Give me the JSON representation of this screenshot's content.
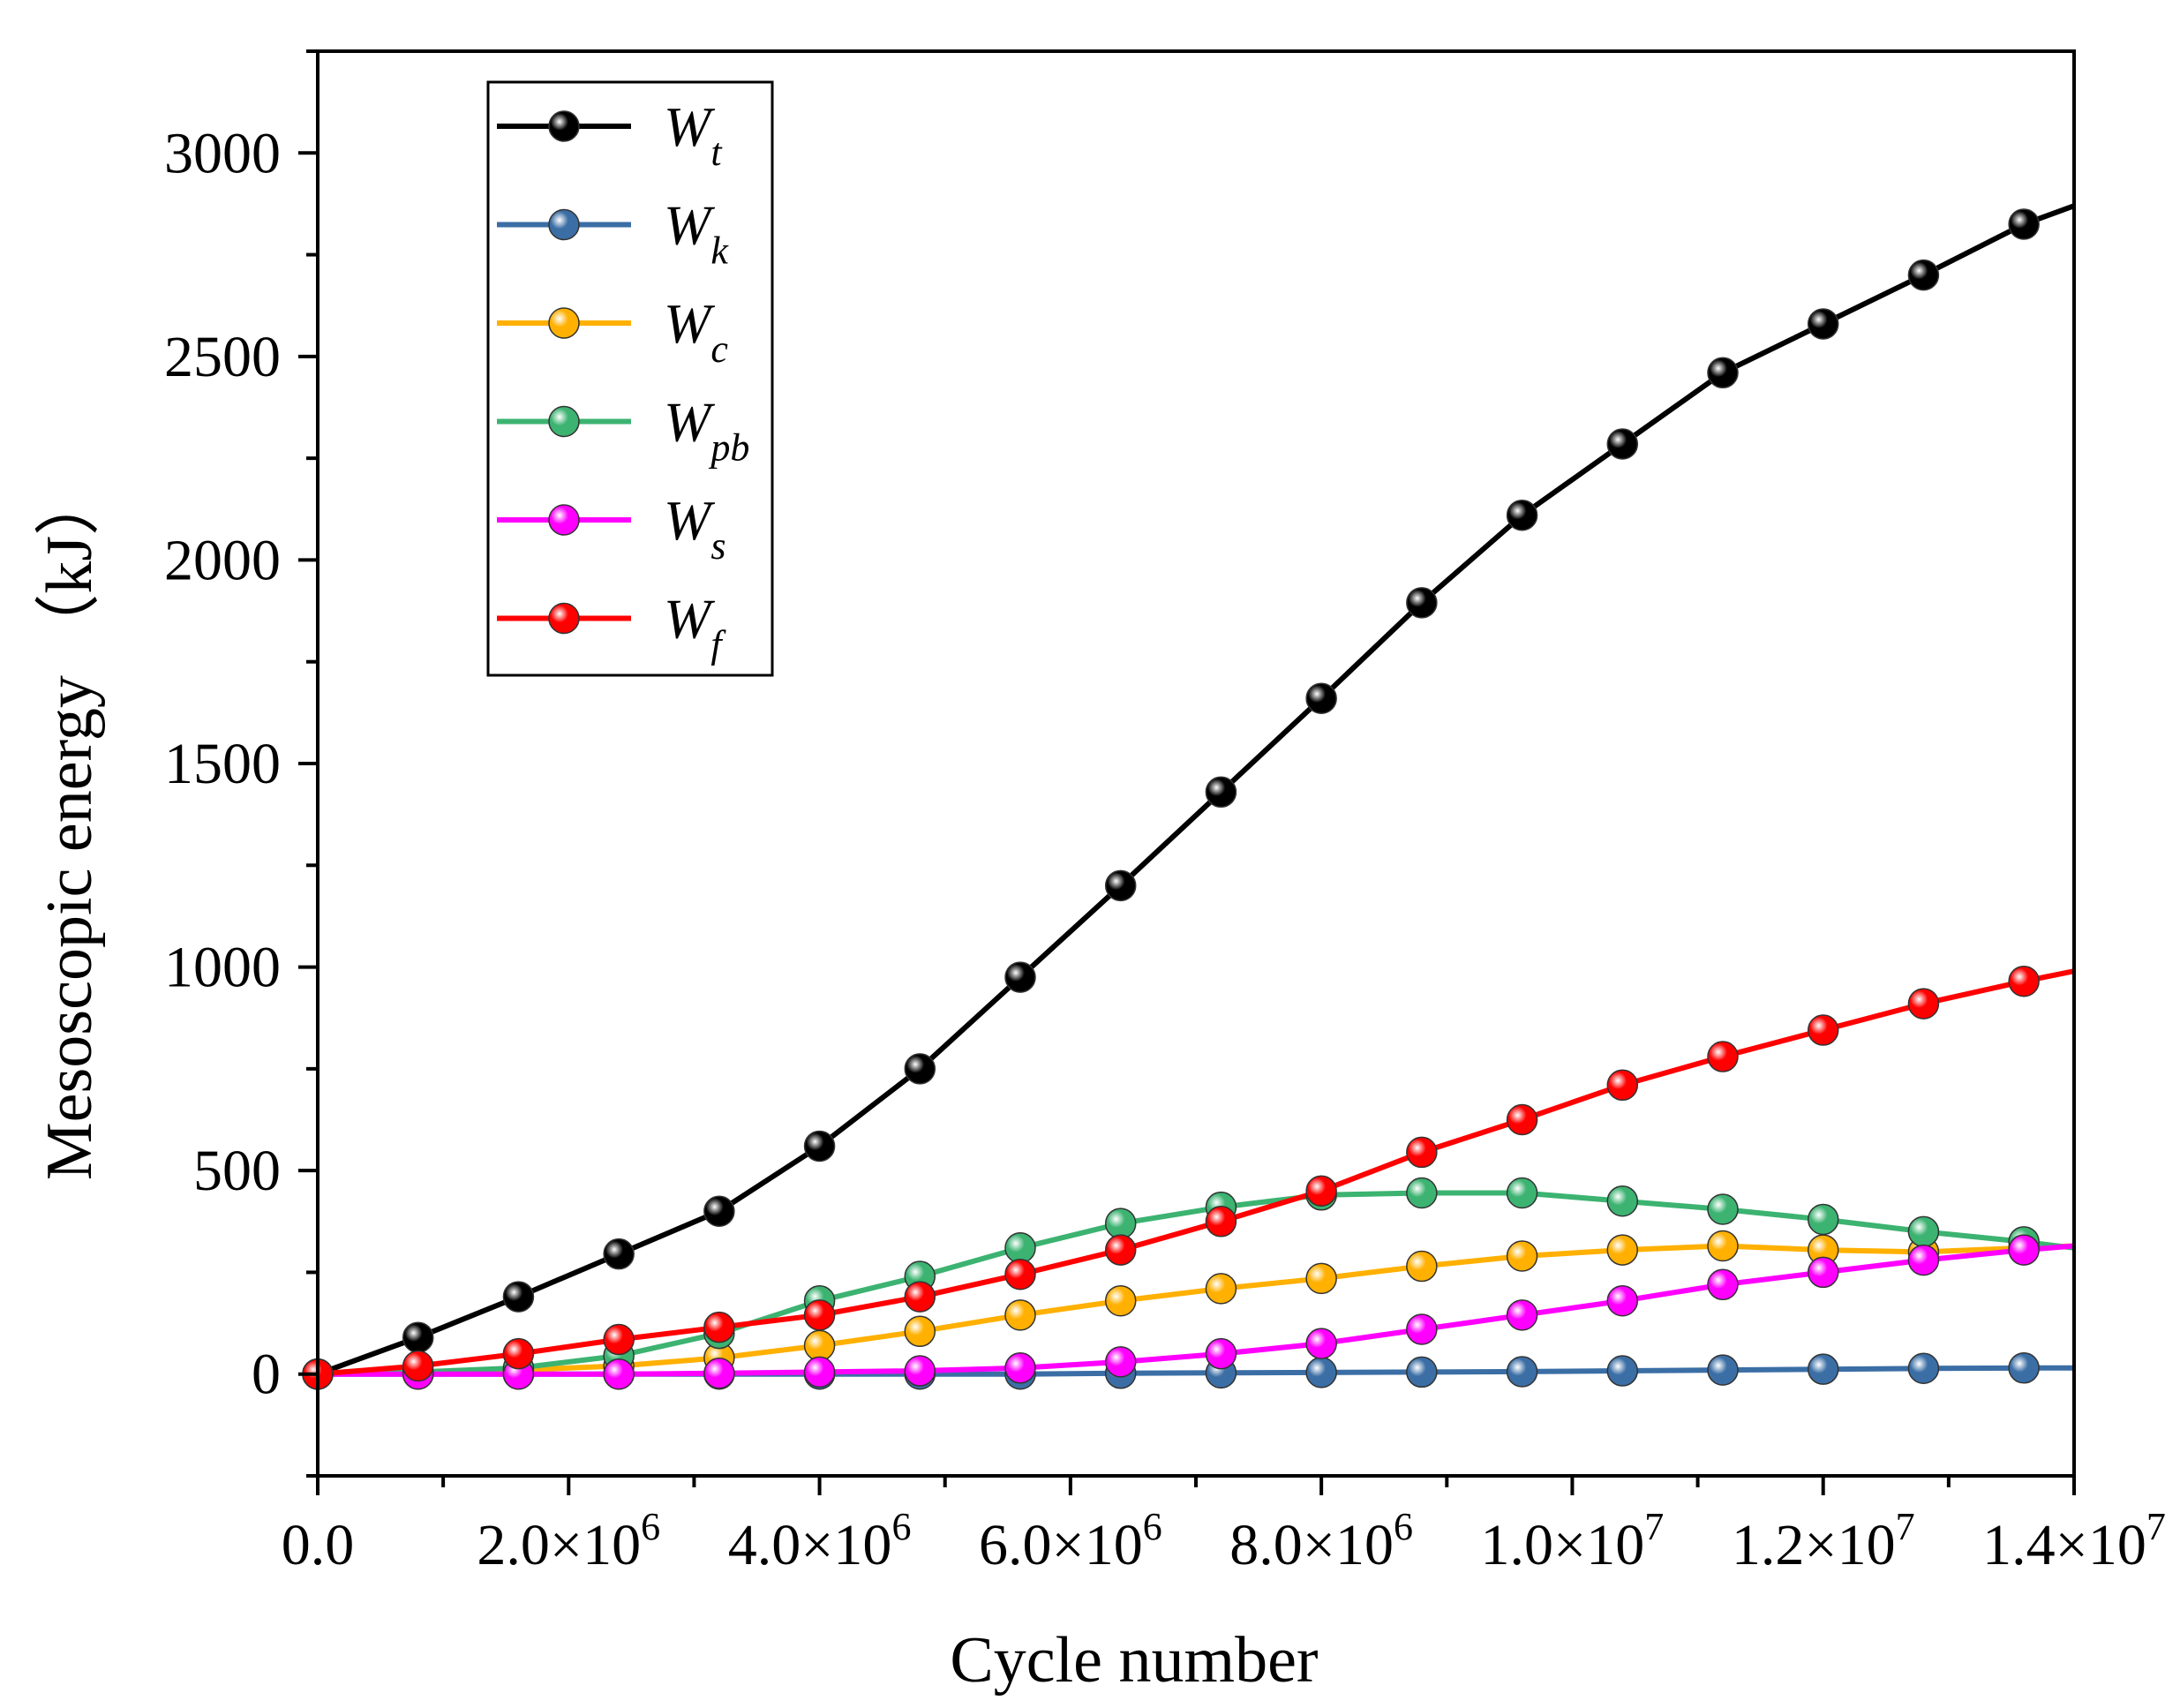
{
  "chart_data": {
    "type": "line",
    "xlabel": "Cycle number",
    "ylabel": "Mesoscopic energy （kJ）",
    "xlim": [
      0,
      14000000
    ],
    "ylim": [
      -250,
      3250
    ],
    "x_ticks": [
      {
        "value": 0,
        "base": "0.0",
        "exp": ""
      },
      {
        "value": 2000000,
        "base": "2.0×10",
        "exp": "6"
      },
      {
        "value": 4000000,
        "base": "4.0×10",
        "exp": "6"
      },
      {
        "value": 6000000,
        "base": "6.0×10",
        "exp": "6"
      },
      {
        "value": 8000000,
        "base": "8.0×10",
        "exp": "6"
      },
      {
        "value": 10000000,
        "base": "1.0×10",
        "exp": "7"
      },
      {
        "value": 12000000,
        "base": "1.2×10",
        "exp": "7"
      },
      {
        "value": 14000000,
        "base": "1.4×10",
        "exp": "7"
      }
    ],
    "y_ticks": [
      {
        "value": 0,
        "label": "0"
      },
      {
        "value": 500,
        "label": "500"
      },
      {
        "value": 1000,
        "label": "1000"
      },
      {
        "value": 1500,
        "label": "1500"
      },
      {
        "value": 2000,
        "label": "2000"
      },
      {
        "value": 2500,
        "label": "2500"
      },
      {
        "value": 3000,
        "label": "3000"
      }
    ],
    "legend_position": "top-left",
    "marker_x": [
      0,
      800000,
      1600000,
      2400000,
      3200000,
      4000000,
      4800000,
      5600000,
      6400000,
      7200000,
      8000000,
      8800000,
      9600000,
      10400000,
      11200000,
      12000000,
      12800000,
      13600000
    ],
    "series": [
      {
        "name": "W",
        "sub": "t",
        "color": "#000000",
        "line_end": 2870,
        "values": [
          0,
          90,
          190,
          295,
          400,
          560,
          750,
          975,
          1200,
          1430,
          1660,
          1895,
          2110,
          2285,
          2460,
          2580,
          2700,
          2825
        ]
      },
      {
        "name": "W",
        "sub": "k",
        "color": "#3b6ea5",
        "line_end": 15,
        "values": [
          0,
          0,
          0,
          0,
          0,
          0,
          0,
          0,
          2,
          3,
          4,
          5,
          6,
          8,
          10,
          12,
          14,
          15
        ]
      },
      {
        "name": "W",
        "sub": "c",
        "color": "#ffb000",
        "line_end": 315,
        "values": [
          0,
          5,
          10,
          20,
          40,
          70,
          105,
          145,
          180,
          210,
          235,
          265,
          290,
          305,
          315,
          305,
          300,
          310
        ]
      },
      {
        "name": "W",
        "sub": "pb",
        "color": "#3cb371",
        "line_end": 310,
        "values": [
          0,
          5,
          15,
          45,
          100,
          180,
          240,
          310,
          370,
          410,
          440,
          445,
          445,
          425,
          405,
          380,
          350,
          325
        ]
      },
      {
        "name": "W",
        "sub": "s",
        "color": "#ff00ff",
        "line_end": 315,
        "values": [
          0,
          0,
          0,
          0,
          2,
          5,
          8,
          15,
          30,
          50,
          75,
          110,
          145,
          180,
          220,
          250,
          280,
          305
        ]
      },
      {
        "name": "W",
        "sub": "f",
        "color": "#ff0000",
        "line_end": 990,
        "values": [
          0,
          20,
          50,
          85,
          115,
          145,
          190,
          245,
          305,
          375,
          450,
          545,
          625,
          710,
          780,
          845,
          910,
          965
        ]
      }
    ]
  }
}
